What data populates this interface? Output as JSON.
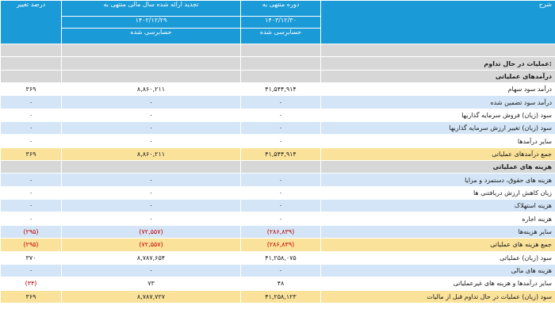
{
  "header": {
    "description": "شرح",
    "current_period": "دوره منتهی به",
    "current_date": "۱۴۰۳/۱۲/۳۰",
    "current_status": "حسابرسی شده",
    "prior_period": "تجدید ارائه شده سال مالی منتهی به",
    "prior_date": "۱۴۰۲/۱۲/۲۹",
    "prior_status": "حسابرسی شده",
    "change": "درصد تغییر"
  },
  "rows": [
    {
      "type": "gray",
      "label": "",
      "current": "",
      "prior": "",
      "change": ""
    },
    {
      "type": "section",
      "label": "عملیات در حال تداوم:",
      "current": "",
      "prior": "",
      "change": ""
    },
    {
      "type": "section",
      "label": "درآمدهای عملیاتی",
      "current": "",
      "prior": "",
      "change": ""
    },
    {
      "type": "white",
      "label": "درآمد سود سهام",
      "current": "۴۱,۵۴۴,۹۱۴",
      "prior": "۸,۸۶۰,۲۱۱",
      "change": "۳۶۹"
    },
    {
      "type": "blue",
      "label": "درآمد سود تضمین شده",
      "current": "۰",
      "prior": "۰",
      "change": "۰"
    },
    {
      "type": "white",
      "label": "سود (زیان) فروش سرمایه گذاریها",
      "current": "۰",
      "prior": "۰",
      "change": "۰"
    },
    {
      "type": "blue",
      "label": "سود (زیان) تغییر ارزش سرمایه گذاریها",
      "current": "۰",
      "prior": "۰",
      "change": "۰"
    },
    {
      "type": "white",
      "label": "سایر درآمدها",
      "current": "۰",
      "prior": "۰",
      "change": "۰"
    },
    {
      "type": "yellow",
      "label": "جمع درآمدهای عملیاتی",
      "current": "۴۱,۵۴۴,۹۱۴",
      "prior": "۸,۸۶۰,۲۱۱",
      "change": "۳۶۹"
    },
    {
      "type": "section",
      "label": "هزینه های عملیاتی",
      "current": "",
      "prior": "",
      "change": ""
    },
    {
      "type": "blue",
      "label": "هزینه های حقوق، دستمزد و مزایا",
      "current": "۰",
      "prior": "۰",
      "change": "۰"
    },
    {
      "type": "white",
      "label": "زیان کاهش ارزش دریافتنی ها",
      "current": "۰",
      "prior": "۰",
      "change": "۰"
    },
    {
      "type": "blue",
      "label": "هزینه استهلاک",
      "current": "۰",
      "prior": "۰",
      "change": "۰"
    },
    {
      "type": "white",
      "label": "هزینه اجاره",
      "current": "۰",
      "prior": "۰",
      "change": "۰"
    },
    {
      "type": "blue",
      "label": "سایر هزینه‌ها",
      "current": "(۲۸۶,۸۳۹)",
      "prior": "(۷۲,۵۵۷)",
      "change": "(۲۹۵)",
      "negative": true
    },
    {
      "type": "yellow",
      "label": "جمع هزینه های عملیاتی",
      "current": "(۲۸۶,۸۳۹)",
      "prior": "(۷۲,۵۵۷)",
      "change": "(۲۹۵)",
      "negative": true
    },
    {
      "type": "white",
      "label": "سود (زیان) عملیاتی",
      "current": "۴۱,۲۵۸,۰۷۵",
      "prior": "۸,۷۸۷,۶۵۴",
      "change": "۳۷۰"
    },
    {
      "type": "blue",
      "label": "هزینه های مالی",
      "current": "۰",
      "prior": "۰",
      "change": "۰"
    },
    {
      "type": "white",
      "label": "سایر درآمدها و هزینه های غیرعملیاتی",
      "current": "۴۸",
      "prior": "۷۳",
      "change": "(۳۴)",
      "negative_change": true
    },
    {
      "type": "yellow",
      "label": "سود (زیان) عملیات در حال تداوم قبل از مالیات",
      "current": "۴۱,۲۵۸,۱۲۳",
      "prior": "۸,۷۸۷,۷۲۷",
      "change": "۳۶۹"
    }
  ]
}
